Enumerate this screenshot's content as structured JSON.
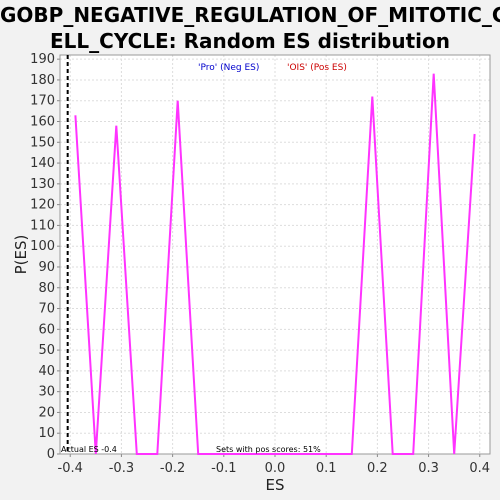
{
  "title_line1": "GOBP_NEGATIVE_REGULATION_OF_MITOTIC_C",
  "title_line2": "ELL_CYCLE: Random ES distribution",
  "colors": {
    "line": "#ff33ff",
    "pro_legend": "#0000cc",
    "ois_legend": "#cc0000",
    "grid": "#dddddd",
    "background": "#ffffff"
  },
  "chart_data": {
    "type": "line",
    "title": "GOBP_NEGATIVE_REGULATION_OF_MITOTIC_CELL_CYCLE: Random ES distribution",
    "xlabel": "ES",
    "ylabel": "P(ES)",
    "xlim": [
      -0.42,
      0.42
    ],
    "ylim": [
      0,
      192
    ],
    "x_ticks": [
      -0.4,
      -0.3,
      -0.2,
      -0.1,
      0.0,
      0.1,
      0.2,
      0.3,
      0.4
    ],
    "x_tick_labels": [
      "-0.4",
      "-0.3",
      "-0.2",
      "-0.1",
      "0.0",
      "0.1",
      "0.2",
      "0.3",
      "0.4"
    ],
    "y_ticks": [
      0,
      10,
      20,
      30,
      40,
      50,
      60,
      70,
      80,
      90,
      100,
      110,
      120,
      130,
      140,
      150,
      160,
      170,
      180,
      190
    ],
    "grid": true,
    "series": [
      {
        "x": [
          -0.39,
          -0.35,
          -0.31,
          -0.27,
          -0.23,
          -0.19,
          -0.15,
          -0.11,
          -0.07,
          -0.03,
          0.01,
          0.05,
          0.09,
          0.13,
          0.15,
          0.19,
          0.23,
          0.27,
          0.31,
          0.35,
          0.39
        ],
        "y": [
          163,
          0,
          158,
          0,
          0,
          170,
          0,
          0,
          0,
          0,
          0,
          0,
          0,
          0,
          0,
          172,
          0,
          0,
          183,
          0,
          154
        ]
      }
    ],
    "vline_x": -0.405,
    "legend": [
      {
        "label": "'Pro' (Neg ES)",
        "color": "#0000cc"
      },
      {
        "label": "'OIS' (Pos ES)",
        "color": "#cc0000"
      }
    ],
    "actual_es_label": "Actual ES -0.4",
    "annotation": "Sets with pos scores: 51%"
  }
}
